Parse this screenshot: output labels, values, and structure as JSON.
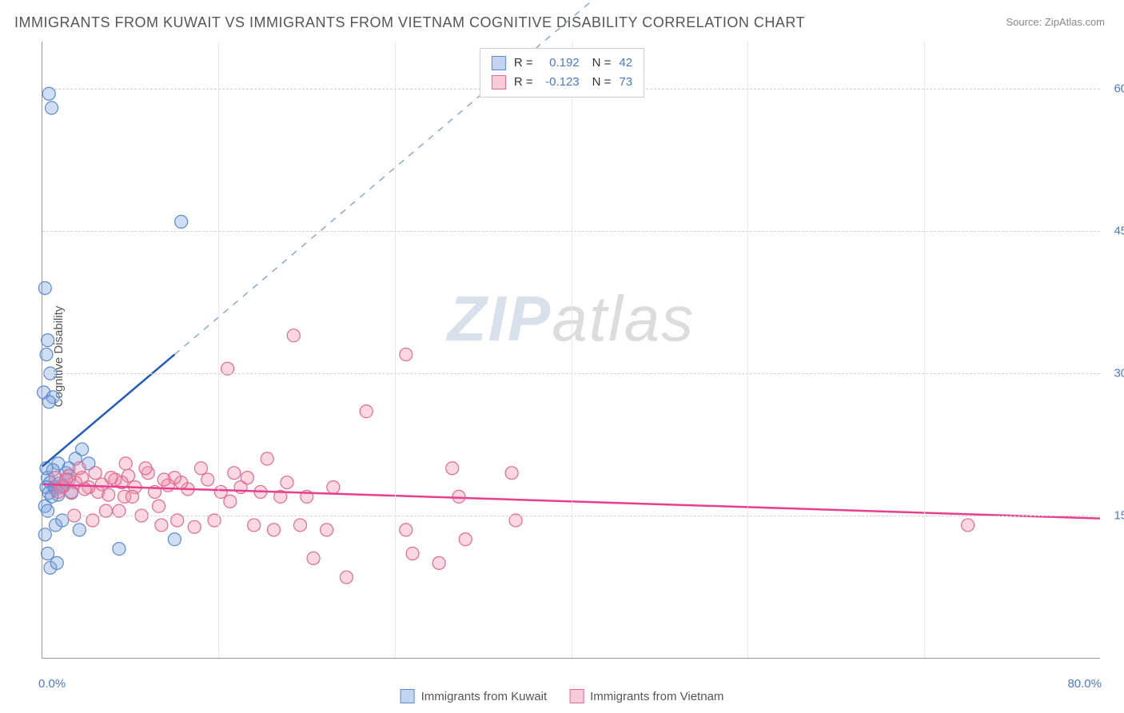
{
  "title": "IMMIGRANTS FROM KUWAIT VS IMMIGRANTS FROM VIETNAM COGNITIVE DISABILITY CORRELATION CHART",
  "source": "Source: ZipAtlas.com",
  "y_axis_title": "Cognitive Disability",
  "watermark_a": "ZIP",
  "watermark_b": "atlas",
  "chart": {
    "type": "scatter",
    "xlim": [
      0,
      80
    ],
    "ylim": [
      0,
      65
    ],
    "x_ticks": [
      0,
      80
    ],
    "x_tick_labels": [
      "0.0%",
      "80.0%"
    ],
    "y_ticks": [
      15,
      30,
      45,
      60
    ],
    "y_tick_labels": [
      "15.0%",
      "30.0%",
      "45.0%",
      "60.0%"
    ],
    "x_minor_gridlines": [
      13.33,
      26.67,
      40,
      53.33,
      66.67
    ],
    "grid_color": "#d0d0d0",
    "axis_color": "#999999",
    "background_color": "#ffffff",
    "marker_radius": 8,
    "series": [
      {
        "name": "Immigrants from Kuwait",
        "color_fill": "rgba(120,160,220,0.35)",
        "color_stroke": "#5a8acf",
        "r": "0.192",
        "n": "42",
        "trend": {
          "x1": 0,
          "y1": 20.2,
          "x2": 10,
          "y2": 32,
          "extend_x": 43,
          "extend_y": 71,
          "solid_color": "#1f5bc4",
          "dash_color": "#8aa8c8"
        },
        "points": [
          [
            0.5,
            59.5
          ],
          [
            0.7,
            58.0
          ],
          [
            0.2,
            39.0
          ],
          [
            0.4,
            33.5
          ],
          [
            0.3,
            32.0
          ],
          [
            0.6,
            30.0
          ],
          [
            0.1,
            28.0
          ],
          [
            0.8,
            27.5
          ],
          [
            0.5,
            27.0
          ],
          [
            10.5,
            46.0
          ],
          [
            3.0,
            22.0
          ],
          [
            2.5,
            21.0
          ],
          [
            1.2,
            20.5
          ],
          [
            1.8,
            19.5
          ],
          [
            0.4,
            19.0
          ],
          [
            2.0,
            18.8
          ],
          [
            0.6,
            18.5
          ],
          [
            1.5,
            18.2
          ],
          [
            0.3,
            18.0
          ],
          [
            1.0,
            17.8
          ],
          [
            1.2,
            17.2
          ],
          [
            2.2,
            17.5
          ],
          [
            0.2,
            13.0
          ],
          [
            1.0,
            14.0
          ],
          [
            1.5,
            14.5
          ],
          [
            2.8,
            13.5
          ],
          [
            0.4,
            11.0
          ],
          [
            5.8,
            11.5
          ],
          [
            0.6,
            9.5
          ],
          [
            1.1,
            10.0
          ],
          [
            10.0,
            12.5
          ],
          [
            0.8,
            19.8
          ],
          [
            0.3,
            20.0
          ],
          [
            0.9,
            18.0
          ],
          [
            1.3,
            18.4
          ],
          [
            1.6,
            18.1
          ],
          [
            0.5,
            17.4
          ],
          [
            0.7,
            17.0
          ],
          [
            0.2,
            16.0
          ],
          [
            0.4,
            15.5
          ],
          [
            3.5,
            20.5
          ],
          [
            2.0,
            20.0
          ]
        ]
      },
      {
        "name": "Immigrants from Vietnam",
        "color_fill": "rgba(240,140,170,0.35)",
        "color_stroke": "#e06a92",
        "r": "-0.123",
        "n": "73",
        "trend": {
          "x1": 0,
          "y1": 18.3,
          "x2": 80,
          "y2": 14.7,
          "color": "#e83e8c"
        },
        "points": [
          [
            19.0,
            34.0
          ],
          [
            27.5,
            32.0
          ],
          [
            14.0,
            30.5
          ],
          [
            24.5,
            26.0
          ],
          [
            31.0,
            20.0
          ],
          [
            31.5,
            17.0
          ],
          [
            35.5,
            19.5
          ],
          [
            35.8,
            14.5
          ],
          [
            32.0,
            12.5
          ],
          [
            30.0,
            10.0
          ],
          [
            20.5,
            10.5
          ],
          [
            21.5,
            13.5
          ],
          [
            27.5,
            13.5
          ],
          [
            28.0,
            11.0
          ],
          [
            23.0,
            8.5
          ],
          [
            70.0,
            14.0
          ],
          [
            17.0,
            21.0
          ],
          [
            18.5,
            18.5
          ],
          [
            18.0,
            17.0
          ],
          [
            16.0,
            14.0
          ],
          [
            15.0,
            18.0
          ],
          [
            14.5,
            19.5
          ],
          [
            13.5,
            17.5
          ],
          [
            13.0,
            14.5
          ],
          [
            12.0,
            20.0
          ],
          [
            11.0,
            17.8
          ],
          [
            10.5,
            18.5
          ],
          [
            10.0,
            19.0
          ],
          [
            9.5,
            18.2
          ],
          [
            9.0,
            14.0
          ],
          [
            9.2,
            18.8
          ],
          [
            8.5,
            17.5
          ],
          [
            8.0,
            19.5
          ],
          [
            7.5,
            15.0
          ],
          [
            7.0,
            18.0
          ],
          [
            6.5,
            19.2
          ],
          [
            6.0,
            18.5
          ],
          [
            6.2,
            17.0
          ],
          [
            5.5,
            18.8
          ],
          [
            5.0,
            17.2
          ],
          [
            5.2,
            19.0
          ],
          [
            4.5,
            18.3
          ],
          [
            4.0,
            19.5
          ],
          [
            4.2,
            17.5
          ],
          [
            3.5,
            18.0
          ],
          [
            3.0,
            19.0
          ],
          [
            3.2,
            17.8
          ],
          [
            2.5,
            18.5
          ],
          [
            2.0,
            19.2
          ],
          [
            2.2,
            17.4
          ],
          [
            2.8,
            20.0
          ],
          [
            1.5,
            18.0
          ],
          [
            1.0,
            19.0
          ],
          [
            1.2,
            17.5
          ],
          [
            1.8,
            18.8
          ],
          [
            5.8,
            15.5
          ],
          [
            6.3,
            20.5
          ],
          [
            7.8,
            20.0
          ],
          [
            10.2,
            14.5
          ],
          [
            11.5,
            13.8
          ],
          [
            12.5,
            18.8
          ],
          [
            14.2,
            16.5
          ],
          [
            15.5,
            19.0
          ],
          [
            16.5,
            17.5
          ],
          [
            17.5,
            13.5
          ],
          [
            19.5,
            14.0
          ],
          [
            20.0,
            17.0
          ],
          [
            22.0,
            18.0
          ],
          [
            6.8,
            17.0
          ],
          [
            4.8,
            15.5
          ],
          [
            3.8,
            14.5
          ],
          [
            2.4,
            15.0
          ],
          [
            8.8,
            16.0
          ]
        ]
      }
    ]
  },
  "legend_top": {
    "rows": [
      {
        "swatch": "blue",
        "r_label": "R =",
        "r": "0.192",
        "n_label": "N =",
        "n": "42"
      },
      {
        "swatch": "pink",
        "r_label": "R =",
        "r": "-0.123",
        "n_label": "N =",
        "n": "73"
      }
    ]
  },
  "legend_bottom": {
    "items": [
      {
        "swatch": "blue",
        "label": "Immigrants from Kuwait"
      },
      {
        "swatch": "pink",
        "label": "Immigrants from Vietnam"
      }
    ]
  }
}
